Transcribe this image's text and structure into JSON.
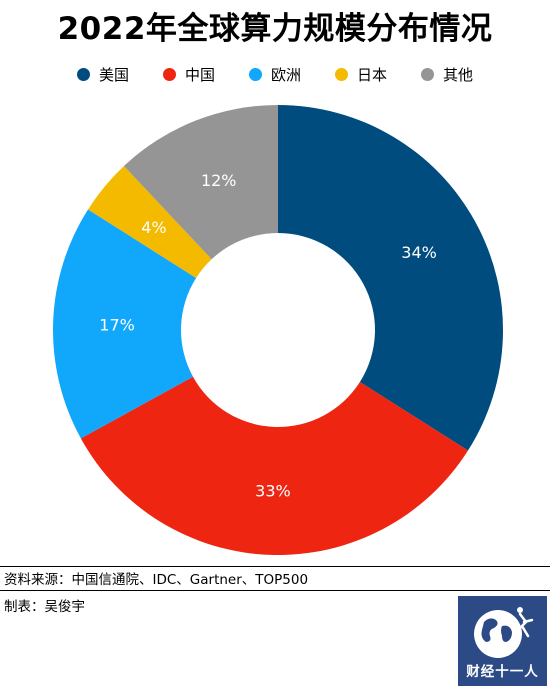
{
  "chart_data": {
    "type": "pie",
    "title": "2022年全球算力规模分布情况",
    "categories": [
      "美国",
      "中国",
      "欧洲",
      "日本",
      "其他"
    ],
    "values": [
      34,
      33,
      17,
      4,
      12
    ],
    "labels": [
      "34%",
      "33%",
      "17%",
      "4%",
      "12%"
    ],
    "colors": [
      "#004c7f",
      "#ee2511",
      "#11a7fb",
      "#f4ba00",
      "#959595"
    ],
    "legend_position": "top"
  },
  "footer": {
    "source": "资料来源：中国信通院、IDC、Gartner、TOP500",
    "maker": "制表：吴俊宇"
  },
  "logo": {
    "text": "财经十一人",
    "icon": "globe-runner-icon"
  }
}
